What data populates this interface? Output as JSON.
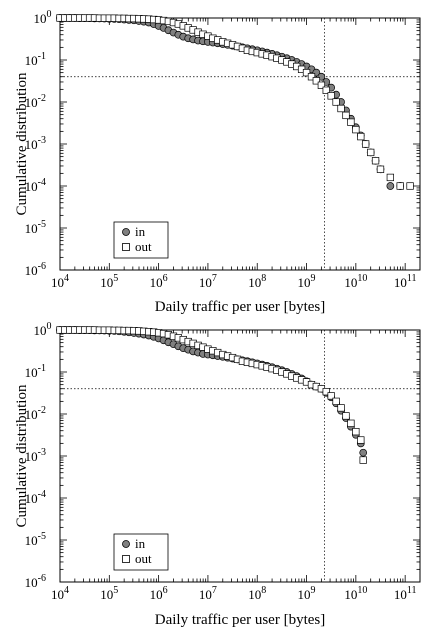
{
  "chart_data": [
    {
      "type": "scatter",
      "x_scale": "log",
      "y_scale": "log",
      "xlabel": "Daily traffic per user [bytes]",
      "ylabel": "Cumulative distribution",
      "xlim": [
        10000,
        200000000000
      ],
      "ylim": [
        1e-06,
        1
      ],
      "x_ticks": [
        10000,
        100000,
        1000000,
        10000000,
        100000000,
        1000000000,
        10000000000,
        100000000000
      ],
      "x_tick_labels": [
        {
          "base": "10",
          "exp": "4"
        },
        {
          "base": "10",
          "exp": "5"
        },
        {
          "base": "10",
          "exp": "6"
        },
        {
          "base": "10",
          "exp": "7"
        },
        {
          "base": "10",
          "exp": "8"
        },
        {
          "base": "10",
          "exp": "9"
        },
        {
          "base": "10",
          "exp": "10"
        },
        {
          "base": "10",
          "exp": "11"
        }
      ],
      "y_ticks": [
        1e-06,
        1e-05,
        0.0001,
        0.001,
        0.01,
        0.1,
        1
      ],
      "y_tick_labels": [
        {
          "base": "10",
          "exp": "-6"
        },
        {
          "base": "10",
          "exp": "-5"
        },
        {
          "base": "10",
          "exp": "-4"
        },
        {
          "base": "10",
          "exp": "-3"
        },
        {
          "base": "10",
          "exp": "-2"
        },
        {
          "base": "10",
          "exp": "-1"
        },
        {
          "base": "10",
          "exp": "0"
        }
      ],
      "reference_lines": {
        "x": 2300000000,
        "y": 0.04
      },
      "legend_position": "bottom-left",
      "series": [
        {
          "name": "in",
          "marker": "circle",
          "color": "#808080",
          "x": [
            10000,
            12600,
            15800,
            20000,
            25100,
            31600,
            39800,
            50100,
            63100,
            79400,
            100000,
            126000,
            158000,
            200000,
            251000,
            316000,
            398000,
            501000,
            631000,
            794000,
            1000000,
            1260000,
            1580000,
            2000000,
            2510000,
            3160000,
            3980000,
            5010000,
            6310000,
            7940000,
            10000000,
            12600000,
            15800000,
            20000000,
            25100000,
            31600000,
            39800000,
            50100000,
            63100000,
            79400000,
            100000000,
            126000000,
            158000000,
            200000000,
            251000000,
            316000000,
            398000000,
            501000000,
            631000000,
            794000000,
            1000000000,
            1260000000,
            1580000000,
            2000000000,
            2510000000,
            3160000000,
            3980000000,
            5010000000,
            6310000000,
            7940000000,
            10000000000,
            12600000000,
            15800000000,
            20000000000,
            25100000000,
            31600000000,
            50100000000,
            79400000000
          ],
          "y": [
            1,
            1,
            1,
            1,
            0.99,
            0.99,
            0.99,
            0.98,
            0.98,
            0.97,
            0.96,
            0.95,
            0.94,
            0.92,
            0.9,
            0.88,
            0.85,
            0.82,
            0.78,
            0.72,
            0.65,
            0.58,
            0.51,
            0.45,
            0.4,
            0.36,
            0.33,
            0.31,
            0.29,
            0.28,
            0.27,
            0.26,
            0.25,
            0.24,
            0.23,
            0.22,
            0.21,
            0.2,
            0.19,
            0.18,
            0.17,
            0.16,
            0.15,
            0.14,
            0.13,
            0.12,
            0.11,
            0.1,
            0.09,
            0.08,
            0.07,
            0.06,
            0.05,
            0.04,
            0.03,
            0.022,
            0.015,
            0.01,
            0.0063,
            0.004,
            0.0025,
            0.0016,
            0.001,
            0.00063,
            0.0004,
            0.00025,
            0.0001,
            0.0001
          ]
        },
        {
          "name": "out",
          "marker": "square",
          "color": "#ffffff",
          "x": [
            10000,
            12600,
            15800,
            20000,
            25100,
            31600,
            39800,
            50100,
            63100,
            79400,
            100000,
            126000,
            158000,
            200000,
            251000,
            316000,
            398000,
            501000,
            631000,
            794000,
            1000000,
            1260000,
            1580000,
            2000000,
            2510000,
            3160000,
            3980000,
            5010000,
            6310000,
            7940000,
            10000000,
            12600000,
            15800000,
            20000000,
            25100000,
            31600000,
            39800000,
            50100000,
            63100000,
            79400000,
            100000000,
            126000000,
            158000000,
            200000000,
            251000000,
            316000000,
            398000000,
            501000000,
            631000000,
            794000000,
            1000000000,
            1260000000,
            1580000000,
            2000000000,
            2510000000,
            3160000000,
            3980000000,
            5010000000,
            6310000000,
            7940000000,
            10000000000,
            12600000000,
            15800000000,
            20000000000,
            25100000000,
            31600000000,
            50100000000,
            79400000000,
            125900000000
          ],
          "y": [
            1,
            1,
            1,
            1,
            1,
            1,
            1,
            1,
            0.99,
            0.99,
            0.99,
            0.99,
            0.98,
            0.98,
            0.97,
            0.97,
            0.96,
            0.95,
            0.94,
            0.92,
            0.9,
            0.87,
            0.83,
            0.78,
            0.72,
            0.65,
            0.58,
            0.52,
            0.46,
            0.41,
            0.37,
            0.33,
            0.3,
            0.27,
            0.25,
            0.23,
            0.21,
            0.19,
            0.17,
            0.16,
            0.15,
            0.14,
            0.13,
            0.12,
            0.11,
            0.1,
            0.09,
            0.08,
            0.07,
            0.06,
            0.05,
            0.04,
            0.032,
            0.025,
            0.019,
            0.014,
            0.01,
            0.007,
            0.0048,
            0.0033,
            0.0022,
            0.0015,
            0.001,
            0.00063,
            0.0004,
            0.00025,
            0.00016,
            0.0001,
            0.0001
          ]
        }
      ]
    },
    {
      "type": "scatter",
      "x_scale": "log",
      "y_scale": "log",
      "xlabel": "Daily traffic per user [bytes]",
      "ylabel": "Cumulative distribution",
      "xlim": [
        10000,
        200000000000
      ],
      "ylim": [
        1e-06,
        1
      ],
      "x_ticks": [
        10000,
        100000,
        1000000,
        10000000,
        100000000,
        1000000000,
        10000000000,
        100000000000
      ],
      "x_tick_labels": [
        {
          "base": "10",
          "exp": "4"
        },
        {
          "base": "10",
          "exp": "5"
        },
        {
          "base": "10",
          "exp": "6"
        },
        {
          "base": "10",
          "exp": "7"
        },
        {
          "base": "10",
          "exp": "8"
        },
        {
          "base": "10",
          "exp": "9"
        },
        {
          "base": "10",
          "exp": "10"
        },
        {
          "base": "10",
          "exp": "11"
        }
      ],
      "y_ticks": [
        1e-06,
        1e-05,
        0.0001,
        0.001,
        0.01,
        0.1,
        1
      ],
      "y_tick_labels": [
        {
          "base": "10",
          "exp": "-6"
        },
        {
          "base": "10",
          "exp": "-5"
        },
        {
          "base": "10",
          "exp": "-4"
        },
        {
          "base": "10",
          "exp": "-3"
        },
        {
          "base": "10",
          "exp": "-2"
        },
        {
          "base": "10",
          "exp": "-1"
        },
        {
          "base": "10",
          "exp": "0"
        }
      ],
      "reference_lines": {
        "x": 2300000000,
        "y": 0.04
      },
      "legend_position": "bottom-left",
      "series": [
        {
          "name": "in",
          "marker": "circle",
          "color": "#808080",
          "x": [
            10000,
            12600,
            15800,
            20000,
            25100,
            31600,
            39800,
            50100,
            63100,
            79400,
            100000,
            126000,
            158000,
            200000,
            251000,
            316000,
            398000,
            501000,
            631000,
            794000,
            1000000,
            1260000,
            1580000,
            2000000,
            2510000,
            3160000,
            3980000,
            5010000,
            6310000,
            7940000,
            10000000,
            12600000,
            15800000,
            20000000,
            25100000,
            31600000,
            39800000,
            50100000,
            63100000,
            79400000,
            100000000,
            126000000,
            158000000,
            200000000,
            251000000,
            316000000,
            398000000,
            501000000,
            631000000,
            794000000,
            1000000000,
            1260000000,
            1580000000,
            2000000000,
            2510000000,
            3160000000,
            3980000000,
            5010000000,
            6310000000,
            7940000000,
            10000000000,
            12600000000,
            14100000000
          ],
          "y": [
            1,
            1,
            1,
            1,
            0.99,
            0.99,
            0.99,
            0.98,
            0.98,
            0.97,
            0.96,
            0.95,
            0.93,
            0.91,
            0.88,
            0.85,
            0.82,
            0.78,
            0.74,
            0.69,
            0.63,
            0.57,
            0.51,
            0.46,
            0.41,
            0.37,
            0.34,
            0.31,
            0.29,
            0.27,
            0.26,
            0.25,
            0.24,
            0.23,
            0.22,
            0.21,
            0.2,
            0.19,
            0.18,
            0.17,
            0.16,
            0.15,
            0.14,
            0.13,
            0.12,
            0.11,
            0.1,
            0.09,
            0.08,
            0.07,
            0.06,
            0.05,
            0.045,
            0.04,
            0.032,
            0.025,
            0.018,
            0.012,
            0.008,
            0.005,
            0.0032,
            0.002,
            0.0012
          ]
        },
        {
          "name": "out",
          "marker": "square",
          "color": "#ffffff",
          "x": [
            10000,
            12600,
            15800,
            20000,
            25100,
            31600,
            39800,
            50100,
            63100,
            79400,
            100000,
            126000,
            158000,
            200000,
            251000,
            316000,
            398000,
            501000,
            631000,
            794000,
            1000000,
            1260000,
            1580000,
            2000000,
            2510000,
            3160000,
            3980000,
            5010000,
            6310000,
            7940000,
            10000000,
            12600000,
            15800000,
            20000000,
            25100000,
            31600000,
            39800000,
            50100000,
            63100000,
            79400000,
            100000000,
            126000000,
            158000000,
            200000000,
            251000000,
            316000000,
            398000000,
            501000000,
            631000000,
            794000000,
            1000000000,
            1260000000,
            1580000000,
            2000000000,
            2510000000,
            3160000000,
            3980000000,
            5010000000,
            6310000000,
            7940000000,
            10000000000,
            12600000000,
            14100000000
          ],
          "y": [
            1,
            1,
            1,
            1,
            1,
            1,
            1,
            1,
            0.99,
            0.99,
            0.99,
            0.98,
            0.98,
            0.97,
            0.97,
            0.96,
            0.95,
            0.93,
            0.91,
            0.89,
            0.86,
            0.82,
            0.77,
            0.71,
            0.65,
            0.59,
            0.53,
            0.48,
            0.43,
            0.39,
            0.35,
            0.32,
            0.29,
            0.26,
            0.24,
            0.22,
            0.2,
            0.18,
            0.17,
            0.16,
            0.15,
            0.14,
            0.13,
            0.12,
            0.11,
            0.1,
            0.09,
            0.08,
            0.072,
            0.065,
            0.058,
            0.05,
            0.045,
            0.04,
            0.034,
            0.027,
            0.02,
            0.014,
            0.009,
            0.006,
            0.0038,
            0.0024,
            0.0008
          ]
        }
      ]
    }
  ]
}
